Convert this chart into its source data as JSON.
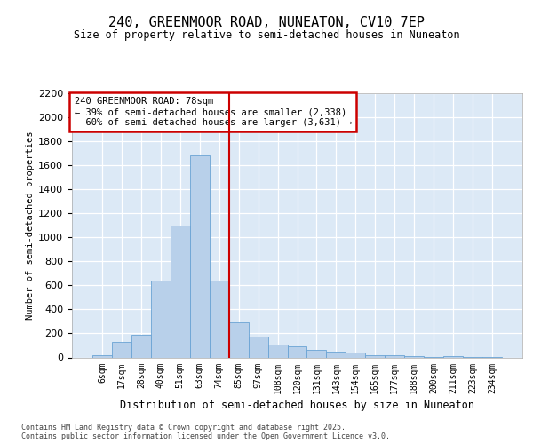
{
  "title1": "240, GREENMOOR ROAD, NUNEATON, CV10 7EP",
  "title2": "Size of property relative to semi-detached houses in Nuneaton",
  "xlabel": "Distribution of semi-detached houses by size in Nuneaton",
  "ylabel": "Number of semi-detached properties",
  "categories": [
    "6sqm",
    "17sqm",
    "28sqm",
    "40sqm",
    "51sqm",
    "63sqm",
    "74sqm",
    "85sqm",
    "97sqm",
    "108sqm",
    "120sqm",
    "131sqm",
    "143sqm",
    "154sqm",
    "165sqm",
    "177sqm",
    "188sqm",
    "200sqm",
    "211sqm",
    "223sqm",
    "234sqm"
  ],
  "values": [
    20,
    130,
    190,
    640,
    1100,
    1680,
    640,
    290,
    175,
    110,
    90,
    65,
    50,
    38,
    20,
    18,
    10,
    5,
    8,
    3,
    5
  ],
  "bar_color": "#b8d0ea",
  "bar_edge_color": "#6aa3d4",
  "background_color": "#dce9f6",
  "grid_color": "#ffffff",
  "annotation_box_color": "#ffffff",
  "annotation_border_color": "#cc0000",
  "vline_color": "#cc0000",
  "vline_x_idx": 6.5,
  "property_label": "240 GREENMOOR ROAD: 78sqm",
  "pct_smaller": 39,
  "count_smaller": 2338,
  "pct_larger": 60,
  "count_larger": 3631,
  "ylim_max": 2200,
  "yticks": [
    0,
    200,
    400,
    600,
    800,
    1000,
    1200,
    1400,
    1600,
    1800,
    2000,
    2200
  ],
  "footer1": "Contains HM Land Registry data © Crown copyright and database right 2025.",
  "footer2": "Contains public sector information licensed under the Open Government Licence v3.0."
}
